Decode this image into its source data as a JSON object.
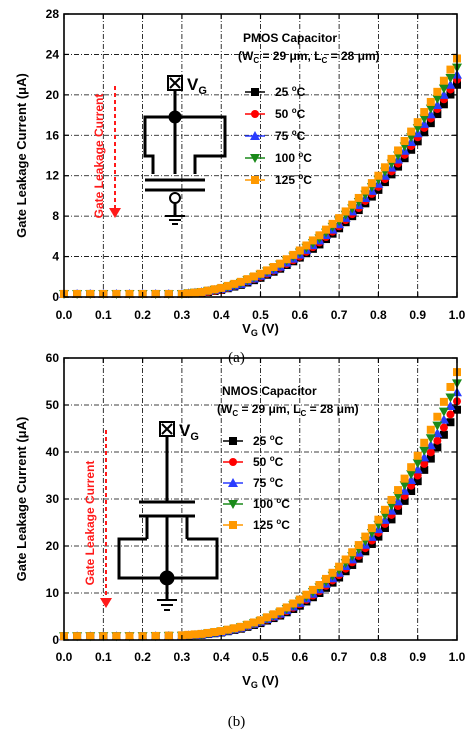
{
  "colors": {
    "25": "#000000",
    "50": "#ff0000",
    "75": "#2a3cff",
    "100": "#1a8a1a",
    "125": "#ff9900",
    "arrow": "#ff1a1a"
  },
  "chart_data": [
    {
      "type": "scatter",
      "panel_caption": "(a)",
      "title_lines": [
        "PMOS Capacitor",
        "(W",
        "C",
        " = 29 μm, L",
        "C",
        " = 28 μm)"
      ],
      "xlabel_main": "V",
      "xlabel_sub": "G",
      "xlabel_tail": " (V)",
      "ylabel": "Gate Leakage Current (μA)",
      "xlim": [
        0.0,
        1.0
      ],
      "ylim": [
        0,
        28
      ],
      "xticks": [
        "0.0",
        "0.1",
        "0.2",
        "0.3",
        "0.4",
        "0.5",
        "0.6",
        "0.7",
        "0.8",
        "0.9",
        "1.0"
      ],
      "yticks": [
        "0",
        "4",
        "8",
        "12",
        "16",
        "20",
        "24",
        "28"
      ],
      "grid": true,
      "legend_position": "right",
      "annotation": "Gate Leakage Current",
      "terminal": "V",
      "terminal_sub": "G",
      "markers": [
        "square",
        "circle",
        "triangle-up",
        "triangle-down",
        "square"
      ],
      "series": [
        {
          "name": "25 °C",
          "key": "25",
          "x": [
            0.0,
            0.1,
            0.2,
            0.3,
            0.35,
            0.4,
            0.45,
            0.5,
            0.55,
            0.6,
            0.65,
            0.7,
            0.75,
            0.8,
            0.85,
            0.9,
            0.95,
            1.0
          ],
          "y": [
            0.3,
            0.3,
            0.3,
            0.3,
            0.4,
            0.7,
            1.2,
            1.9,
            2.8,
            3.9,
            5.2,
            6.8,
            8.6,
            10.6,
            12.9,
            15.4,
            18.1,
            21.0
          ]
        },
        {
          "name": "50 °C",
          "key": "50",
          "x": [
            0.0,
            0.1,
            0.2,
            0.3,
            0.35,
            0.4,
            0.45,
            0.5,
            0.55,
            0.6,
            0.65,
            0.7,
            0.75,
            0.8,
            0.85,
            0.9,
            0.95,
            1.0
          ],
          "y": [
            0.3,
            0.3,
            0.3,
            0.3,
            0.4,
            0.7,
            1.3,
            2.0,
            2.9,
            4.0,
            5.4,
            7.0,
            8.8,
            10.9,
            13.2,
            15.8,
            18.6,
            21.5
          ]
        },
        {
          "name": "75 °C",
          "key": "75",
          "x": [
            0.0,
            0.1,
            0.2,
            0.3,
            0.35,
            0.4,
            0.45,
            0.5,
            0.55,
            0.6,
            0.65,
            0.7,
            0.75,
            0.8,
            0.85,
            0.9,
            0.95,
            1.0
          ],
          "y": [
            0.3,
            0.3,
            0.3,
            0.3,
            0.5,
            0.8,
            1.3,
            2.1,
            3.0,
            4.2,
            5.6,
            7.2,
            9.1,
            11.2,
            13.6,
            16.2,
            19.0,
            22.0
          ]
        },
        {
          "name": "100 °C",
          "key": "100",
          "x": [
            0.0,
            0.1,
            0.2,
            0.3,
            0.35,
            0.4,
            0.45,
            0.5,
            0.55,
            0.6,
            0.65,
            0.7,
            0.75,
            0.8,
            0.85,
            0.9,
            0.95,
            1.0
          ],
          "y": [
            0.3,
            0.3,
            0.3,
            0.3,
            0.5,
            0.8,
            1.4,
            2.2,
            3.2,
            4.4,
            5.8,
            7.5,
            9.4,
            11.6,
            14.0,
            16.7,
            19.6,
            22.7
          ]
        },
        {
          "name": "125 °C",
          "key": "125",
          "x": [
            0.0,
            0.1,
            0.2,
            0.3,
            0.35,
            0.4,
            0.45,
            0.5,
            0.55,
            0.6,
            0.65,
            0.7,
            0.75,
            0.8,
            0.85,
            0.9,
            0.95,
            1.0
          ],
          "y": [
            0.3,
            0.3,
            0.3,
            0.3,
            0.5,
            0.9,
            1.5,
            2.3,
            3.3,
            4.6,
            6.1,
            7.8,
            9.8,
            12.0,
            14.5,
            17.3,
            20.3,
            23.6
          ]
        }
      ]
    },
    {
      "type": "scatter",
      "panel_caption": "(b)",
      "title_lines": [
        "NMOS Capacitor",
        "(W",
        "C",
        " = 29 μm, L",
        "C",
        " = 28 μm)"
      ],
      "xlabel_main": "V",
      "xlabel_sub": "G",
      "xlabel_tail": " (V)",
      "ylabel": "Gate Leakage Current (μA)",
      "xlim": [
        0.0,
        1.0
      ],
      "ylim": [
        0,
        60
      ],
      "xticks": [
        "0.0",
        "0.1",
        "0.2",
        "0.3",
        "0.4",
        "0.5",
        "0.6",
        "0.7",
        "0.8",
        "0.9",
        "1.0"
      ],
      "yticks": [
        "0",
        "10",
        "20",
        "30",
        "40",
        "50",
        "60"
      ],
      "grid": true,
      "legend_position": "right",
      "annotation": "Gate Leakage Current",
      "terminal": "V",
      "terminal_sub": "G",
      "markers": [
        "square",
        "circle",
        "triangle-up",
        "triangle-down",
        "square"
      ],
      "series": [
        {
          "name": "25 °C",
          "key": "25",
          "x": [
            0.0,
            0.1,
            0.2,
            0.3,
            0.35,
            0.4,
            0.45,
            0.5,
            0.55,
            0.6,
            0.65,
            0.7,
            0.75,
            0.8,
            0.85,
            0.9,
            0.95,
            1.0
          ],
          "y": [
            0.8,
            0.8,
            0.8,
            0.9,
            1.1,
            1.6,
            2.4,
            3.6,
            5.2,
            7.3,
            10.0,
            13.3,
            17.3,
            22.0,
            27.5,
            33.8,
            41.0,
            49.0
          ]
        },
        {
          "name": "50 °C",
          "key": "50",
          "x": [
            0.0,
            0.1,
            0.2,
            0.3,
            0.35,
            0.4,
            0.45,
            0.5,
            0.55,
            0.6,
            0.65,
            0.7,
            0.75,
            0.8,
            0.85,
            0.9,
            0.95,
            1.0
          ],
          "y": [
            0.8,
            0.8,
            0.8,
            0.9,
            1.2,
            1.7,
            2.5,
            3.8,
            5.4,
            7.6,
            10.4,
            13.8,
            17.9,
            22.8,
            28.5,
            35.0,
            42.4,
            50.8
          ]
        },
        {
          "name": "75 °C",
          "key": "75",
          "x": [
            0.0,
            0.1,
            0.2,
            0.3,
            0.35,
            0.4,
            0.45,
            0.5,
            0.55,
            0.6,
            0.65,
            0.7,
            0.75,
            0.8,
            0.85,
            0.9,
            0.95,
            1.0
          ],
          "y": [
            0.8,
            0.8,
            0.8,
            0.9,
            1.2,
            1.7,
            2.6,
            3.9,
            5.6,
            7.9,
            10.8,
            14.3,
            18.6,
            23.6,
            29.5,
            36.3,
            44.0,
            52.7
          ]
        },
        {
          "name": "100 °C",
          "key": "100",
          "x": [
            0.0,
            0.1,
            0.2,
            0.3,
            0.35,
            0.4,
            0.45,
            0.5,
            0.55,
            0.6,
            0.65,
            0.7,
            0.75,
            0.8,
            0.85,
            0.9,
            0.95,
            1.0
          ],
          "y": [
            0.8,
            0.8,
            0.8,
            0.9,
            1.2,
            1.8,
            2.7,
            4.0,
            5.8,
            8.2,
            11.2,
            14.9,
            19.3,
            24.5,
            30.6,
            37.6,
            45.6,
            54.6
          ]
        },
        {
          "name": "125 °C",
          "key": "125",
          "x": [
            0.0,
            0.1,
            0.2,
            0.3,
            0.35,
            0.4,
            0.45,
            0.5,
            0.55,
            0.6,
            0.65,
            0.7,
            0.75,
            0.8,
            0.85,
            0.9,
            0.95,
            1.0
          ],
          "y": [
            0.8,
            0.8,
            0.8,
            1.0,
            1.3,
            1.9,
            2.8,
            4.2,
            6.1,
            8.6,
            11.7,
            15.6,
            20.2,
            25.6,
            31.9,
            39.2,
            47.5,
            57.0
          ]
        }
      ]
    }
  ]
}
